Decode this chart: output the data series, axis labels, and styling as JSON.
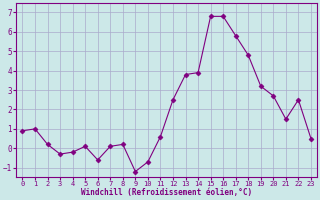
{
  "x": [
    0,
    1,
    2,
    3,
    4,
    5,
    6,
    7,
    8,
    9,
    10,
    11,
    12,
    13,
    14,
    15,
    16,
    17,
    18,
    19,
    20,
    21,
    22,
    23
  ],
  "y": [
    0.9,
    1.0,
    0.2,
    -0.3,
    -0.2,
    0.1,
    -0.6,
    0.1,
    0.2,
    -1.2,
    -0.7,
    0.6,
    2.5,
    3.8,
    3.9,
    6.8,
    6.8,
    5.8,
    4.8,
    3.2,
    2.7,
    1.5,
    2.5,
    0.5
  ],
  "line_color": "#800080",
  "marker": "D",
  "marker_size": 2.5,
  "bg_color": "#cce8e8",
  "grid_color": "#aaaacc",
  "xlabel": "Windchill (Refroidissement éolien,°C)",
  "xlabel_color": "#800080",
  "tick_color": "#800080",
  "spine_color": "#800080",
  "ylim": [
    -1.5,
    7.5
  ],
  "xlim": [
    -0.5,
    23.5
  ],
  "yticks": [
    -1,
    0,
    1,
    2,
    3,
    4,
    5,
    6,
    7
  ],
  "xticks": [
    0,
    1,
    2,
    3,
    4,
    5,
    6,
    7,
    8,
    9,
    10,
    11,
    12,
    13,
    14,
    15,
    16,
    17,
    18,
    19,
    20,
    21,
    22,
    23
  ],
  "xlabel_fontsize": 5.5,
  "tick_fontsize_x": 5.0,
  "tick_fontsize_y": 5.5
}
